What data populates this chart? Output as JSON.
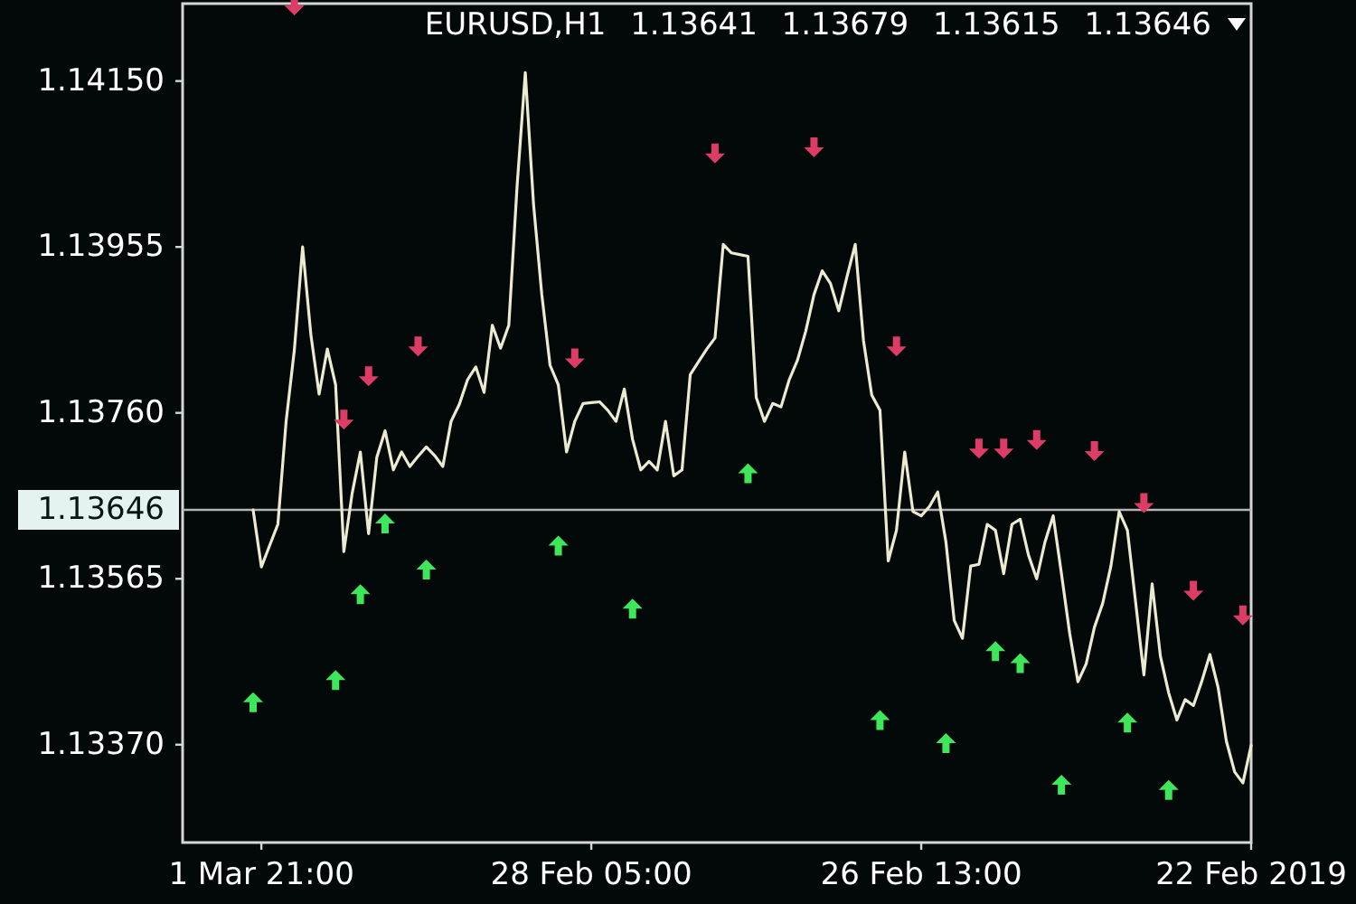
{
  "chart_data": {
    "type": "line",
    "title": "EURUSD,H1 1.13641 1.13679 1.13615 1.13646",
    "categories": [
      null,
      "1 Mar 21:00",
      null,
      null,
      null,
      null,
      null,
      null,
      null,
      null,
      null,
      null,
      null,
      null,
      null,
      null,
      null,
      null,
      null,
      null,
      null,
      null,
      null,
      null,
      null,
      null,
      null,
      null,
      null,
      null,
      null,
      null,
      null,
      null,
      null,
      null,
      null,
      null,
      null,
      null,
      null,
      "28 Feb 05:00",
      null,
      null,
      null,
      null,
      null,
      null,
      null,
      null,
      null,
      null,
      null,
      null,
      null,
      null,
      null,
      null,
      null,
      null,
      null,
      null,
      null,
      null,
      null,
      null,
      null,
      null,
      null,
      null,
      null,
      null,
      null,
      null,
      null,
      null,
      null,
      null,
      null,
      null,
      null,
      "26 Feb 13:00",
      null,
      null,
      null,
      null,
      null,
      null,
      null,
      null,
      null,
      null,
      null,
      null,
      null,
      null,
      null,
      null,
      null,
      null,
      null,
      null,
      null,
      null,
      null,
      null,
      null,
      null,
      null,
      null,
      null,
      null,
      null,
      null,
      null,
      null,
      null,
      null,
      null,
      null,
      null,
      "22 Feb 2019"
    ],
    "ylim": [
      1.13255,
      1.14241
    ],
    "yticks": [
      {
        "value": 1.1337,
        "label": "1.13370"
      },
      1.13565,
      {
        "value": 1.1376,
        "label": "1.13760"
      },
      1.13955,
      {
        "value": 1.1415,
        "label": "1.14150"
      }
    ],
    "series": [
      {
        "color": "#ecebd2",
        "values": [
          1.13646,
          1.13579,
          1.13604,
          1.13629,
          1.1375,
          1.13834,
          1.13955,
          1.13852,
          1.13782,
          1.13835,
          1.13793,
          1.13597,
          1.13665,
          1.13714,
          1.13618,
          1.13708,
          1.13739,
          1.13693,
          1.13714,
          1.13697,
          1.13709,
          1.1372,
          1.1371,
          1.13697,
          1.1375,
          1.1377,
          1.13799,
          1.13814,
          1.13784,
          1.13863,
          1.13836,
          1.13863,
          1.14026,
          1.1416,
          1.14005,
          1.13899,
          1.13816,
          1.13793,
          1.13714,
          1.1375,
          1.13771,
          1.13772,
          1.13773,
          1.13763,
          1.1375,
          1.13788,
          1.13729,
          1.13693,
          1.13703,
          1.13693,
          1.1375,
          1.13686,
          1.13693,
          1.13805,
          1.1382,
          1.13835,
          1.13848,
          1.13958,
          1.13948,
          1.13946,
          1.13944,
          1.13778,
          1.1375,
          1.13771,
          1.13767,
          1.13799,
          1.13822,
          1.13856,
          1.13899,
          1.13927,
          1.13912,
          1.1388,
          1.1392,
          1.13958,
          1.13845,
          1.13781,
          1.13763,
          1.13586,
          1.13622,
          1.13714,
          1.13644,
          1.13639,
          1.1365,
          1.13667,
          1.13608,
          1.13516,
          1.13495,
          1.1358,
          1.13582,
          1.13629,
          1.13622,
          1.13571,
          1.13629,
          1.13635,
          1.13593,
          1.13565,
          1.13608,
          1.13639,
          1.13571,
          1.13501,
          1.13444,
          1.13465,
          1.13508,
          1.13536,
          1.1358,
          1.13644,
          1.13622,
          1.13537,
          1.13452,
          1.13559,
          1.13474,
          1.13431,
          1.13399,
          1.13423,
          1.13416,
          1.13444,
          1.13476,
          1.13437,
          1.13374,
          1.13338,
          1.13325,
          1.13369
        ]
      },
      {
        "type": "scatter",
        "marker": "triangle",
        "color": "#3ee65a",
        "values": [
          1.1342,
          null,
          null,
          null,
          null,
          null,
          null,
          null,
          null,
          null,
          1.13446,
          null,
          null,
          1.13547,
          null,
          null,
          1.1363,
          null,
          null,
          null,
          null,
          1.13576,
          null,
          null,
          null,
          null,
          null,
          null,
          null,
          null,
          null,
          null,
          null,
          null,
          null,
          null,
          null,
          1.13604,
          null,
          null,
          null,
          null,
          null,
          null,
          null,
          null,
          1.1353,
          null,
          null,
          null,
          null,
          null,
          null,
          null,
          null,
          null,
          null,
          null,
          null,
          null,
          1.13689,
          null,
          null,
          null,
          null,
          null,
          null,
          null,
          null,
          null,
          null,
          null,
          null,
          null,
          null,
          null,
          1.13399,
          null,
          null,
          null,
          null,
          null,
          null,
          null,
          1.13372,
          null,
          null,
          null,
          null,
          null,
          1.1348,
          null,
          null,
          1.13466,
          null,
          null,
          null,
          null,
          1.13323,
          null,
          null,
          null,
          null,
          null,
          null,
          null,
          1.13396,
          null,
          null,
          null,
          null,
          1.13317,
          null,
          null,
          null,
          null,
          null,
          null,
          null,
          null,
          null,
          null
        ]
      },
      {
        "type": "scatter",
        "marker": "triangle",
        "color": "#dc3c66",
        "values": [
          null,
          null,
          null,
          null,
          null,
          1.14239,
          null,
          null,
          null,
          null,
          null,
          1.13752,
          null,
          null,
          1.13803,
          null,
          null,
          null,
          null,
          null,
          1.13838,
          null,
          null,
          null,
          null,
          null,
          null,
          null,
          null,
          null,
          null,
          null,
          null,
          null,
          null,
          null,
          null,
          null,
          null,
          1.13824,
          null,
          null,
          null,
          null,
          null,
          null,
          null,
          null,
          null,
          null,
          null,
          null,
          null,
          null,
          null,
          null,
          1.14065,
          null,
          null,
          null,
          null,
          null,
          null,
          null,
          null,
          null,
          null,
          null,
          1.14072,
          null,
          null,
          null,
          null,
          null,
          null,
          null,
          null,
          null,
          1.13838,
          null,
          null,
          null,
          null,
          null,
          null,
          null,
          null,
          null,
          1.13718,
          null,
          null,
          1.13718,
          null,
          null,
          null,
          1.13728,
          null,
          null,
          null,
          null,
          null,
          null,
          1.13715,
          null,
          null,
          null,
          null,
          null,
          1.13654,
          null,
          null,
          null,
          null,
          null,
          1.13551,
          null,
          null,
          null,
          null,
          null,
          1.13522,
          null
        ]
      }
    ],
    "ref_lines": [
      {
        "axis": "y",
        "value": 1.13646,
        "label": "1.13646",
        "color": "#b4b4b4"
      }
    ]
  }
}
